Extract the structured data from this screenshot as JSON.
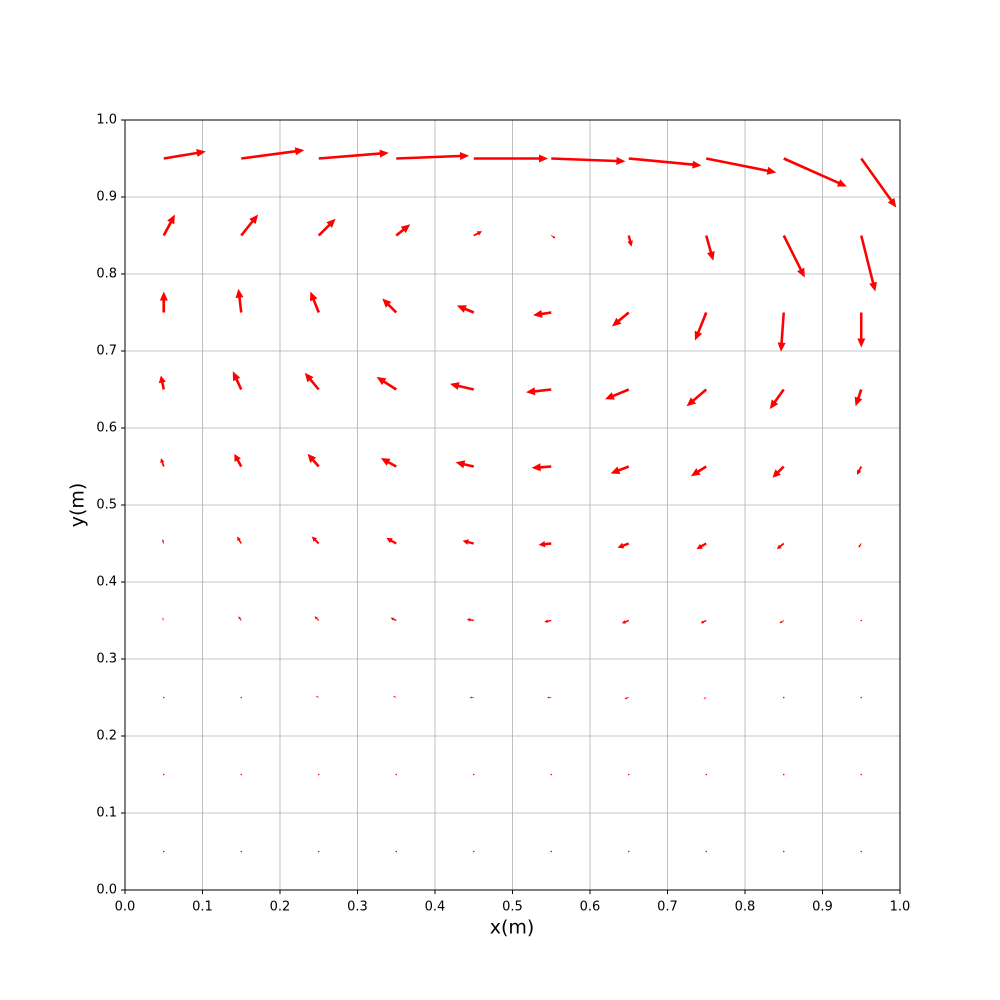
{
  "chart_data": {
    "type": "quiver",
    "xlabel": "x(m)",
    "ylabel": "y(m)",
    "color": "#ff0000",
    "grid": true,
    "xlim": [
      0,
      1
    ],
    "ylim": [
      0,
      1
    ],
    "xticks": [
      {
        "value": 0,
        "label": "0.0"
      },
      {
        "value": 0.1,
        "label": "0.1"
      },
      {
        "value": 0.2,
        "label": "0.2"
      },
      {
        "value": 0.3,
        "label": "0.3"
      },
      {
        "value": 0.4,
        "label": "0.4"
      },
      {
        "value": 0.5,
        "label": "0.5"
      },
      {
        "value": 0.6,
        "label": "0.6"
      },
      {
        "value": 0.7,
        "label": "0.7"
      },
      {
        "value": 0.8,
        "label": "0.8"
      },
      {
        "value": 0.9,
        "label": "0.9"
      },
      {
        "value": 1,
        "label": "1.0"
      }
    ],
    "yticks": [
      {
        "value": 0,
        "label": "0.0"
      },
      {
        "value": 0.1,
        "label": "0.1"
      },
      {
        "value": 0.2,
        "label": "0.2"
      },
      {
        "value": 0.3,
        "label": "0.3"
      },
      {
        "value": 0.4,
        "label": "0.4"
      },
      {
        "value": 0.5,
        "label": "0.5"
      },
      {
        "value": 0.6,
        "label": "0.6"
      },
      {
        "value": 0.7,
        "label": "0.7"
      },
      {
        "value": 0.8,
        "label": "0.8"
      },
      {
        "value": 0.9,
        "label": "0.9"
      },
      {
        "value": 1,
        "label": "1.0"
      }
    ],
    "x": [
      0.05,
      0.15,
      0.25,
      0.35,
      0.45,
      0.55,
      0.65,
      0.75,
      0.85,
      0.95
    ],
    "y": [
      0.05,
      0.15,
      0.25,
      0.35,
      0.45,
      0.55,
      0.65,
      0.75,
      0.85,
      0.95
    ],
    "u": [
      [
        0,
        0,
        0,
        0,
        0,
        0,
        0,
        0,
        0,
        0
      ],
      [
        0,
        0,
        -0.01,
        -0.01,
        -0.01,
        -0.01,
        -0.01,
        -0.01,
        0,
        0
      ],
      [
        0,
        -0.01,
        -0.02,
        -0.02,
        -0.03,
        -0.03,
        -0.03,
        -0.02,
        -0.01,
        0
      ],
      [
        -0.01,
        -0.02,
        -0.03,
        -0.04,
        -0.05,
        -0.05,
        -0.05,
        -0.04,
        -0.03,
        -0.01
      ],
      [
        -0.01,
        -0.03,
        -0.05,
        -0.07,
        -0.08,
        -0.09,
        -0.08,
        -0.07,
        -0.05,
        -0.02
      ],
      [
        -0.02,
        -0.05,
        -0.08,
        -0.11,
        -0.13,
        -0.14,
        -0.13,
        -0.11,
        -0.08,
        -0.03
      ],
      [
        -0.02,
        -0.06,
        -0.1,
        -0.14,
        -0.17,
        -0.18,
        -0.17,
        -0.14,
        -0.1,
        -0.04
      ],
      [
        0,
        -0.02,
        -0.06,
        -0.1,
        -0.12,
        -0.13,
        -0.12,
        -0.08,
        -0.02,
        0
      ],
      [
        0.08,
        0.12,
        0.12,
        0.1,
        0.06,
        0.03,
        0.02,
        0.05,
        0.15,
        0.1
      ],
      [
        0.3,
        0.45,
        0.5,
        0.52,
        0.53,
        0.53,
        0.52,
        0.5,
        0.45,
        0.25
      ]
    ],
    "v": [
      [
        0,
        0,
        0,
        0,
        0,
        0,
        0,
        0,
        0,
        0
      ],
      [
        0,
        0.01,
        0,
        0,
        0,
        0,
        0,
        0,
        0,
        0
      ],
      [
        0.01,
        0.01,
        0.01,
        0.01,
        0,
        0,
        -0.01,
        -0.01,
        -0.01,
        -0.01
      ],
      [
        0.02,
        0.03,
        0.03,
        0.02,
        0.01,
        -0.01,
        -0.02,
        -0.02,
        -0.02,
        -0.01
      ],
      [
        0.03,
        0.05,
        0.05,
        0.04,
        0.02,
        -0.01,
        -0.03,
        -0.04,
        -0.04,
        -0.03
      ],
      [
        0.06,
        0.09,
        0.09,
        0.06,
        0.03,
        -0.01,
        -0.05,
        -0.07,
        -0.08,
        -0.06
      ],
      [
        0.1,
        0.13,
        0.12,
        0.09,
        0.04,
        -0.02,
        -0.07,
        -0.12,
        -0.14,
        -0.12
      ],
      [
        0.15,
        0.17,
        0.15,
        0.1,
        0.05,
        -0.02,
        -0.1,
        -0.2,
        -0.28,
        -0.25
      ],
      [
        0.15,
        0.15,
        0.12,
        0.08,
        0.03,
        -0.02,
        -0.08,
        -0.18,
        -0.3,
        -0.4
      ],
      [
        0.05,
        0.06,
        0.04,
        0.02,
        0,
        -0.02,
        -0.05,
        -0.1,
        -0.2,
        -0.35
      ]
    ]
  }
}
